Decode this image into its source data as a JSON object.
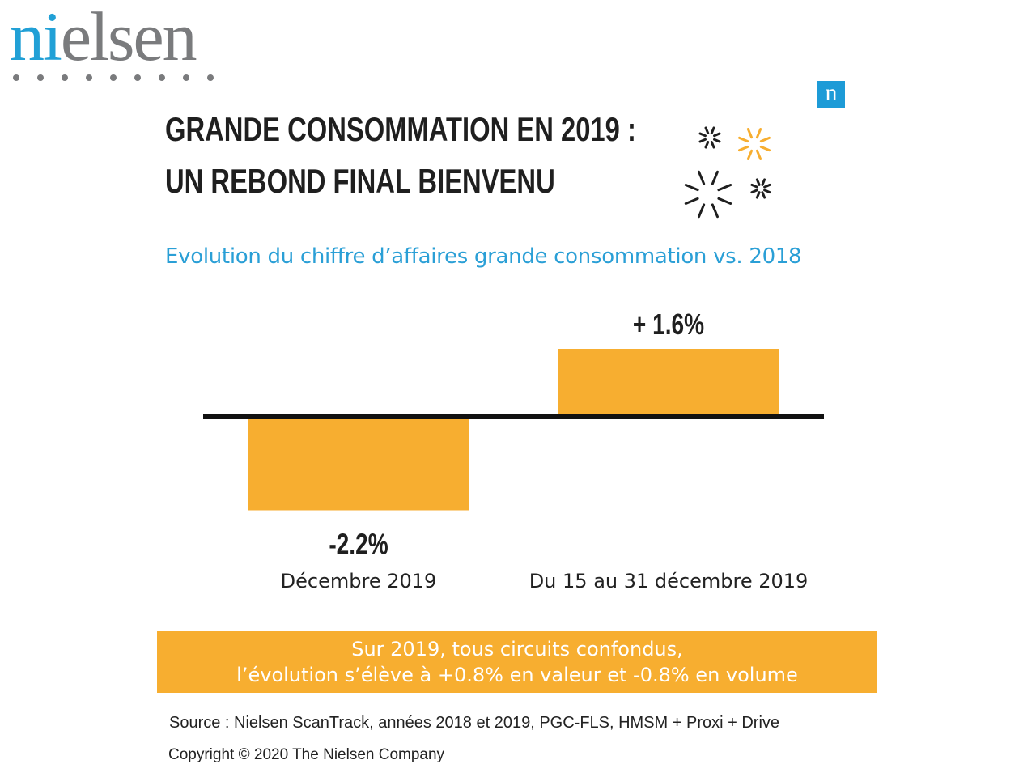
{
  "brand": {
    "logo_prefix": "ni",
    "logo_suffix": "elsen",
    "badge_letter": "n",
    "logo_blue": "#21a0d6",
    "logo_gray": "#7a7b7d"
  },
  "headline": {
    "line1": "GRANDE CONSOMMATION EN 2019 :",
    "line2": "UN REBOND FINAL BIENVENU"
  },
  "subtitle": "Evolution du chiffre d’affaires grande consommation vs. 2018",
  "chart_data": {
    "type": "bar",
    "categories": [
      "Décembre 2019",
      "Du 15 au 31 décembre 2019"
    ],
    "values": [
      -2.2,
      1.6
    ],
    "value_labels": [
      "-2.2%",
      "+ 1.6%"
    ],
    "unit": "%",
    "title": "Evolution du chiffre d’affaires grande consommation vs. 2018",
    "xlabel": "",
    "ylabel": "",
    "grid": false,
    "legend": "none",
    "bar_color": "#f7ae30"
  },
  "summary": {
    "line1": "Sur 2019, tous circuits confondus,",
    "line2": "l’évolution s’élève à +0.8% en valeur et -0.8% en volume"
  },
  "footer": {
    "source": "Source : Nielsen ScanTrack, années 2018 et 2019, PGC-FLS, HMSM + Proxi + Drive",
    "copyright": "Copyright © 2020 The Nielsen Company"
  },
  "icons": [
    "sparkle-icon",
    "nielsen-badge-icon"
  ],
  "colors": {
    "accent_orange": "#f7ae30",
    "accent_blue": "#2a9fd6",
    "text_dark": "#1f1f1f"
  }
}
